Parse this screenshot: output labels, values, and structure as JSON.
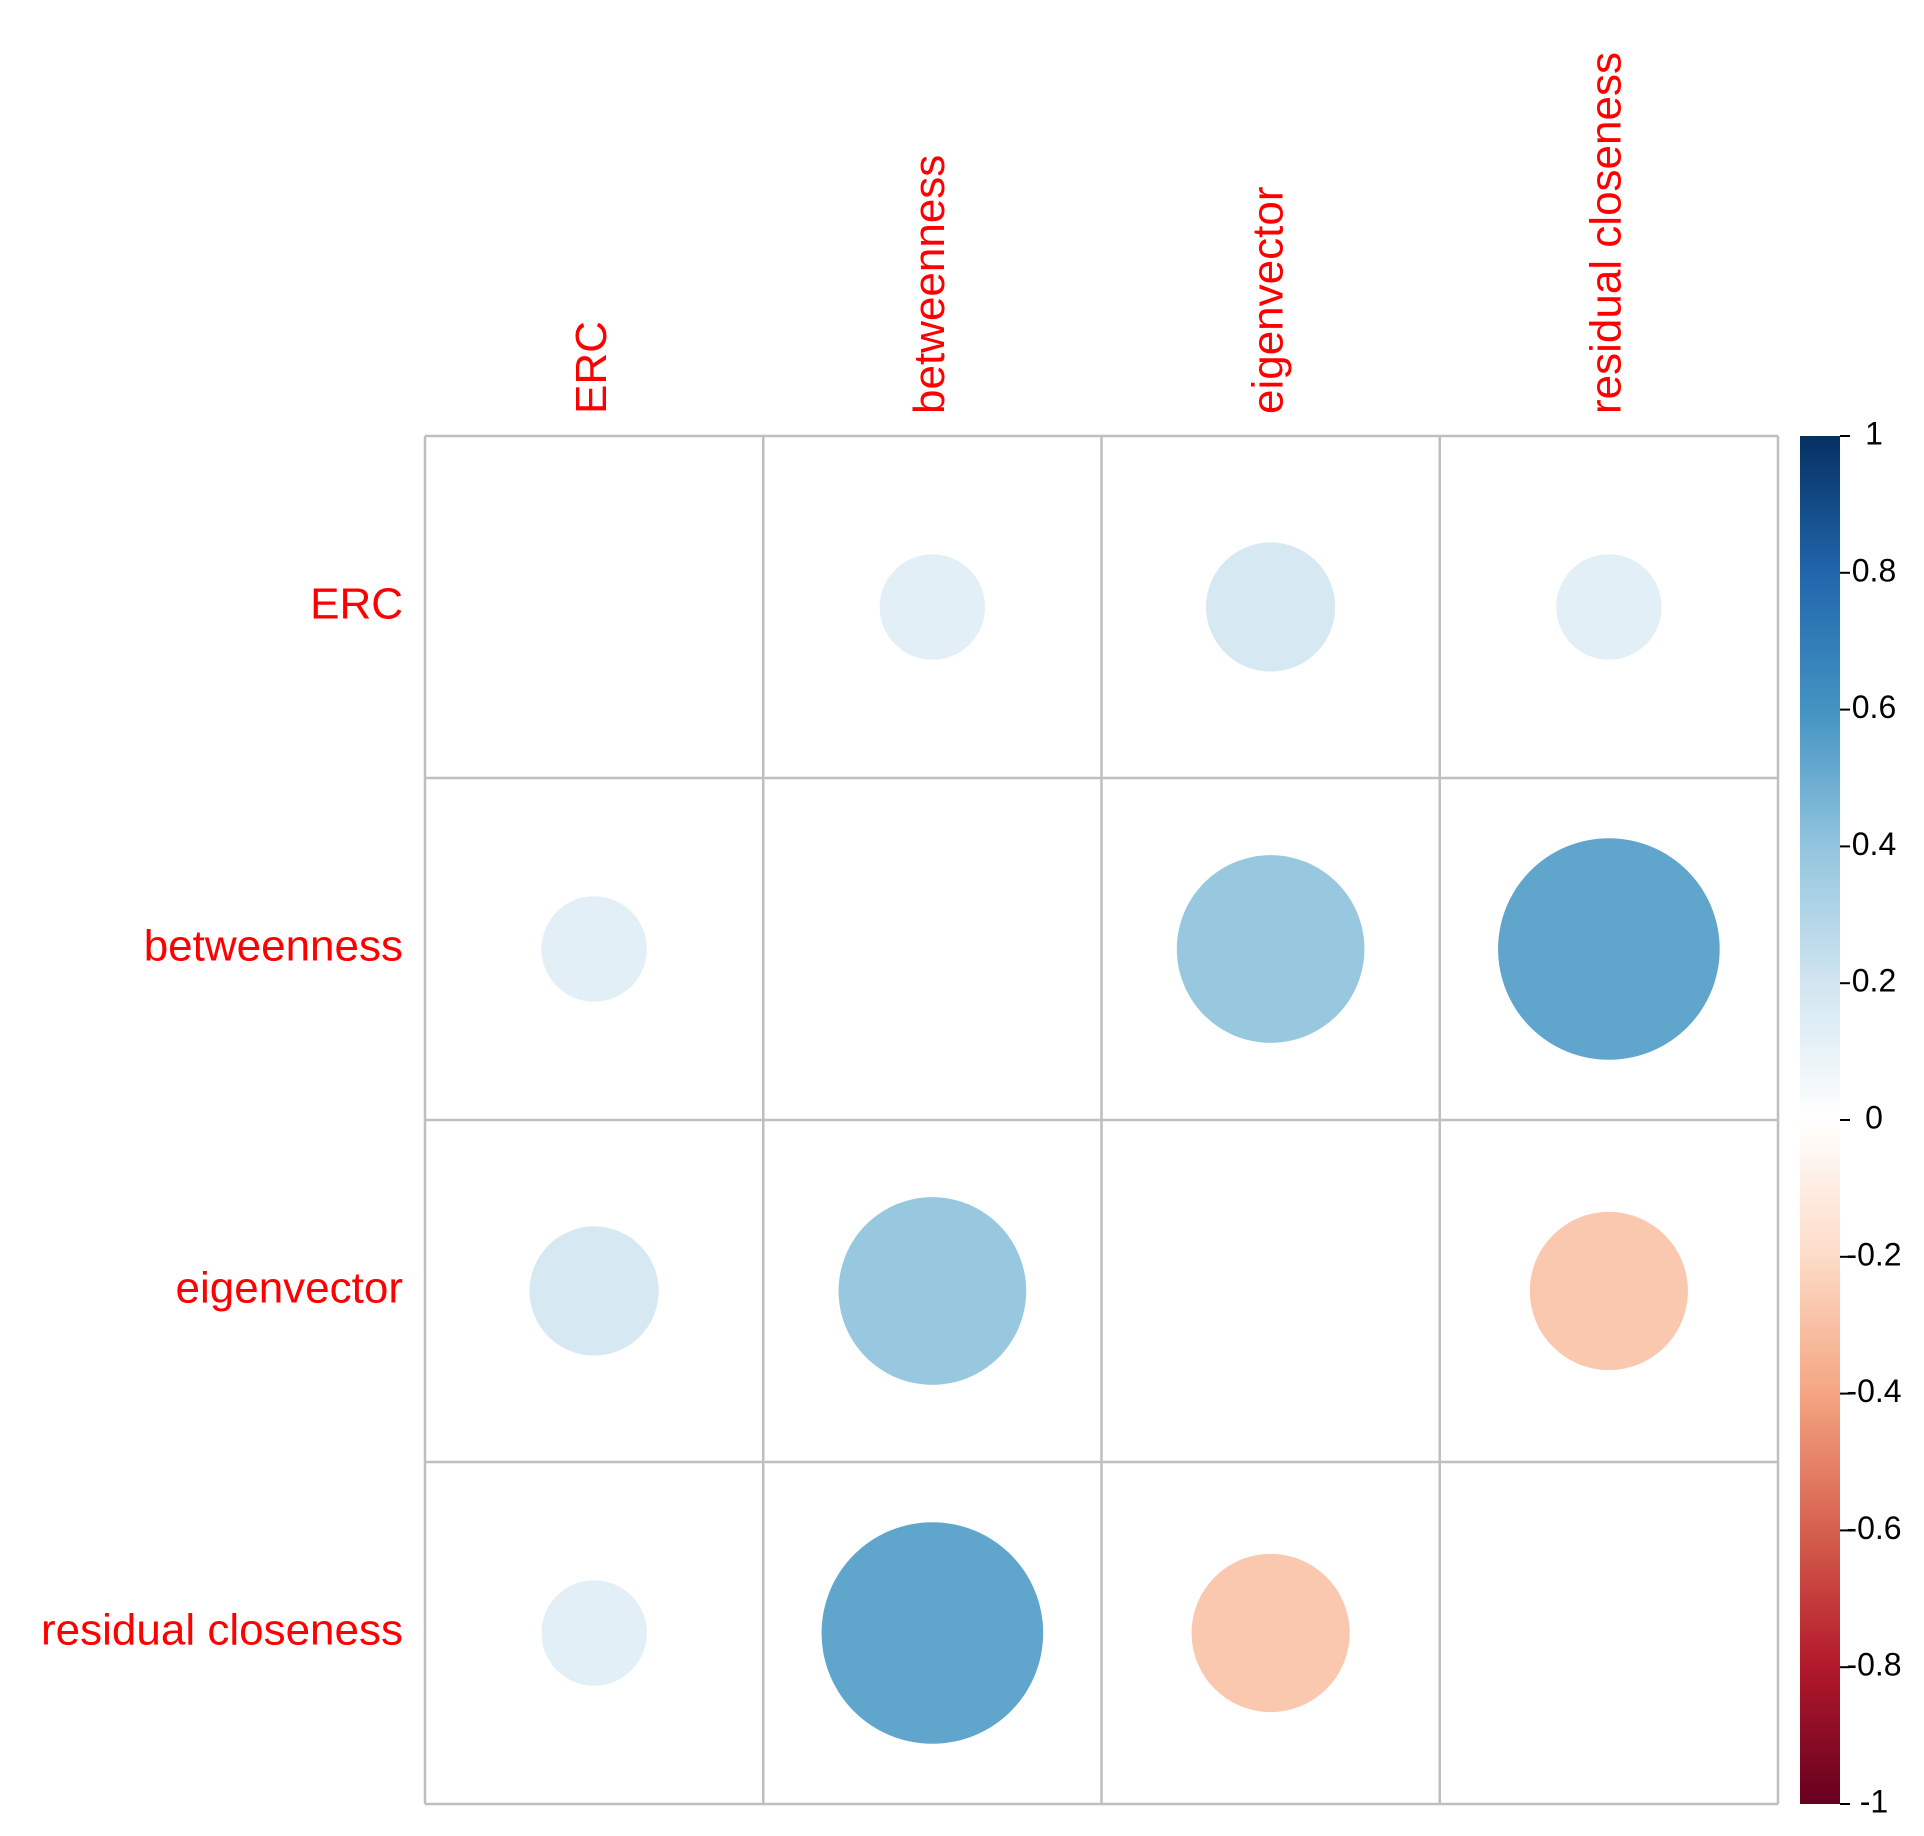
{
  "chart_data": {
    "type": "heatmap",
    "style": "corrplot-circle",
    "row_labels": [
      "ERC",
      "betweenness",
      "eigenvector",
      "residual closeness"
    ],
    "col_labels": [
      "ERC",
      "betweenness",
      "eigenvector",
      "residual closeness"
    ],
    "matrix": [
      [
        null,
        0.12,
        0.18,
        0.12
      ],
      [
        0.12,
        null,
        0.38,
        0.53
      ],
      [
        0.18,
        0.38,
        null,
        -0.27
      ],
      [
        0.12,
        0.53,
        -0.27,
        null
      ]
    ],
    "diagonal_shown": false,
    "colorbar": {
      "range": [
        -1,
        1
      ],
      "ticks": [
        1,
        0.8,
        0.6,
        0.4,
        0.2,
        0,
        -0.2,
        -0.4,
        -0.6,
        -0.8,
        -1
      ],
      "tick_labels": [
        "1",
        "0.8",
        "0.6",
        "0.4",
        "0.2",
        "0",
        "-0.2",
        "-0.4",
        "-0.6",
        "-0.8",
        "-1"
      ],
      "colors": [
        "#67001F",
        "#B2182B",
        "#D6604D",
        "#F4A582",
        "#FDDBC7",
        "#FFFFFF",
        "#D1E5F0",
        "#92C5DE",
        "#4393C3",
        "#2166AC",
        "#053061"
      ]
    },
    "label_color": "#FF0000",
    "grid_color": "#BFBFBF"
  }
}
